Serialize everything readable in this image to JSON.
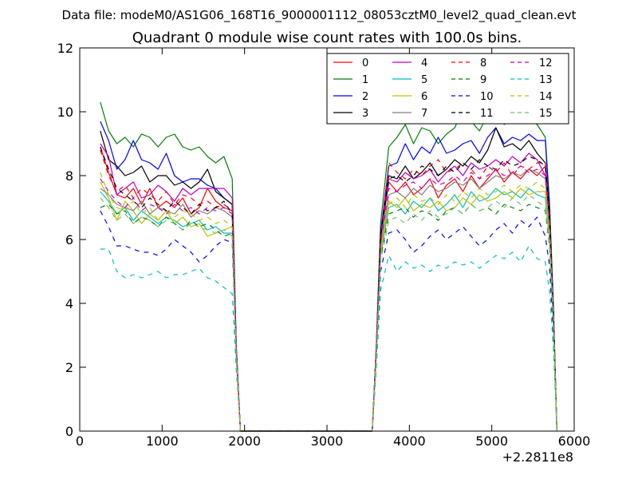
{
  "figure": {
    "suptitle": "Data file: modeM0/AS1G06_168T16_9000001112_08053cztM0_level2_quad_clean.evt"
  },
  "chart_data": {
    "type": "line",
    "title": "Quadrant 0 module wise count rates with 100.0s bins.",
    "xlabel": "",
    "ylabel": "",
    "xlim": [
      0,
      6000
    ],
    "ylim": [
      0,
      12
    ],
    "x_offset_label": "+2.2811e8",
    "x_ticks": [
      0,
      1000,
      2000,
      3000,
      4000,
      5000,
      6000
    ],
    "y_ticks": [
      0,
      2,
      4,
      6,
      8,
      10,
      12
    ],
    "grid": false,
    "legend_position": "top-right",
    "x": [
      250,
      350,
      450,
      550,
      650,
      750,
      850,
      950,
      1050,
      1150,
      1250,
      1350,
      1450,
      1550,
      1650,
      1750,
      1850,
      1900,
      1950,
      2050,
      2150,
      2250,
      2350,
      2450,
      2550,
      2650,
      2750,
      2850,
      2950,
      3050,
      3150,
      3250,
      3350,
      3450,
      3550,
      3600,
      3650,
      3750,
      3850,
      3950,
      4050,
      4150,
      4250,
      4350,
      4450,
      4550,
      4650,
      4750,
      4850,
      4950,
      5050,
      5150,
      5250,
      5350,
      5450,
      5550,
      5650,
      5700,
      5750,
      5790
    ],
    "series": [
      {
        "name": "0",
        "color": "#ff0000",
        "dash": "solid",
        "values": [
          8.9,
          8.1,
          7.4,
          7.3,
          7.6,
          7.1,
          7.6,
          7.0,
          7.2,
          7.0,
          7.3,
          6.8,
          7.0,
          7.6,
          7.2,
          7.0,
          6.9,
          2.5,
          0,
          0,
          0,
          0,
          0,
          0,
          0,
          0,
          0,
          0,
          0,
          0,
          0,
          0,
          0,
          0,
          0,
          2.6,
          6.0,
          7.8,
          7.5,
          7.8,
          7.4,
          7.6,
          7.9,
          7.3,
          7.7,
          7.9,
          7.5,
          8.0,
          7.6,
          7.9,
          8.2,
          7.8,
          8.1,
          7.9,
          8.2,
          8.0,
          8.3,
          6.5,
          3.5,
          0
        ]
      },
      {
        "name": "1",
        "color": "#008000",
        "dash": "solid",
        "values": [
          10.3,
          9.4,
          9.0,
          9.2,
          8.9,
          9.3,
          9.2,
          8.9,
          9.2,
          9.3,
          8.9,
          8.8,
          8.9,
          8.6,
          8.4,
          8.6,
          7.9,
          2.7,
          0,
          0,
          0,
          0,
          0,
          0,
          0,
          0,
          0,
          0,
          0,
          0,
          0,
          0,
          0,
          0,
          0,
          2.8,
          6.5,
          8.9,
          9.2,
          9.6,
          9.0,
          9.5,
          9.4,
          9.0,
          9.3,
          9.5,
          10.1,
          9.7,
          9.4,
          9.9,
          10.2,
          9.6,
          9.8,
          10.0,
          9.8,
          9.6,
          9.2,
          7.2,
          3.8,
          0
        ]
      },
      {
        "name": "2",
        "color": "#0000ff",
        "dash": "solid",
        "values": [
          9.7,
          9.1,
          8.2,
          8.5,
          9.1,
          8.5,
          8.4,
          8.2,
          8.7,
          8.0,
          7.8,
          7.9,
          7.9,
          7.7,
          7.6,
          7.3,
          7.1,
          2.6,
          0,
          0,
          0,
          0,
          0,
          0,
          0,
          0,
          0,
          0,
          0,
          0,
          0,
          0,
          0,
          0,
          0,
          2.7,
          6.2,
          8.3,
          8.4,
          9.0,
          8.5,
          8.9,
          8.7,
          9.2,
          8.7,
          8.8,
          9.0,
          9.1,
          8.7,
          9.2,
          9.5,
          9.0,
          9.2,
          9.1,
          9.3,
          9.1,
          9.1,
          7.0,
          3.6,
          0
        ]
      },
      {
        "name": "3",
        "color": "#000000",
        "dash": "solid",
        "values": [
          9.4,
          8.5,
          8.3,
          8.0,
          8.1,
          8.3,
          7.8,
          8.0,
          8.0,
          7.7,
          7.8,
          7.6,
          7.8,
          8.2,
          7.5,
          7.3,
          7.1,
          2.6,
          0,
          0,
          0,
          0,
          0,
          0,
          0,
          0,
          0,
          0,
          0,
          0,
          0,
          0,
          0,
          0,
          0,
          2.7,
          6.1,
          8.0,
          7.9,
          8.3,
          7.9,
          8.1,
          8.4,
          8.0,
          8.2,
          8.5,
          8.3,
          8.6,
          8.4,
          8.8,
          9.5,
          8.9,
          9.0,
          8.8,
          9.1,
          8.7,
          8.4,
          6.8,
          3.5,
          0
        ]
      },
      {
        "name": "4",
        "color": "#bf00bf",
        "dash": "solid",
        "values": [
          9.0,
          8.6,
          7.4,
          7.6,
          7.8,
          7.3,
          7.4,
          7.7,
          7.5,
          7.2,
          7.6,
          7.4,
          7.6,
          7.6,
          7.6,
          7.6,
          7.3,
          2.6,
          0,
          0,
          0,
          0,
          0,
          0,
          0,
          0,
          0,
          0,
          0,
          0,
          0,
          0,
          0,
          0,
          0,
          2.7,
          6.0,
          7.9,
          7.8,
          8.1,
          7.9,
          8.0,
          8.2,
          7.8,
          8.1,
          8.3,
          8.0,
          8.4,
          8.2,
          8.3,
          8.5,
          8.3,
          8.6,
          8.4,
          8.7,
          8.5,
          8.0,
          6.6,
          3.4,
          0
        ]
      },
      {
        "name": "5",
        "color": "#00bfbf",
        "dash": "solid",
        "values": [
          7.5,
          7.2,
          6.8,
          7.0,
          6.6,
          6.9,
          6.7,
          6.5,
          6.7,
          6.6,
          6.4,
          6.5,
          6.6,
          6.3,
          6.4,
          6.2,
          6.2,
          2.4,
          0,
          0,
          0,
          0,
          0,
          0,
          0,
          0,
          0,
          0,
          0,
          0,
          0,
          0,
          0,
          0,
          0,
          2.5,
          5.5,
          7.0,
          7.1,
          6.8,
          7.2,
          7.0,
          7.3,
          6.9,
          7.1,
          7.4,
          7.0,
          7.5,
          7.2,
          7.3,
          7.6,
          7.4,
          7.5,
          7.3,
          7.6,
          7.4,
          7.3,
          6.0,
          3.2,
          0
        ]
      },
      {
        "name": "6",
        "color": "#bfbf00",
        "dash": "solid",
        "values": [
          7.8,
          7.3,
          6.6,
          7.2,
          6.9,
          6.5,
          6.8,
          6.6,
          6.9,
          6.5,
          6.7,
          6.4,
          6.5,
          6.1,
          6.2,
          6.3,
          6.4,
          2.4,
          0,
          0,
          0,
          0,
          0,
          0,
          0,
          0,
          0,
          0,
          0,
          0,
          0,
          0,
          0,
          0,
          0,
          2.5,
          5.6,
          7.2,
          7.0,
          7.3,
          6.9,
          7.1,
          7.0,
          7.2,
          6.9,
          7.0,
          7.3,
          7.1,
          7.4,
          7.2,
          7.3,
          7.5,
          7.3,
          7.6,
          7.4,
          7.5,
          7.5,
          6.1,
          3.3,
          0
        ]
      },
      {
        "name": "7",
        "color": "#808080",
        "dash": "solid",
        "values": [
          7.6,
          7.4,
          7.1,
          7.0,
          6.9,
          7.2,
          6.8,
          7.0,
          6.9,
          6.8,
          7.1,
          6.7,
          6.9,
          6.8,
          7.0,
          6.9,
          6.7,
          2.5,
          0,
          0,
          0,
          0,
          0,
          0,
          0,
          0,
          0,
          0,
          0,
          0,
          0,
          0,
          0,
          0,
          0,
          2.6,
          5.8,
          7.4,
          7.5,
          7.3,
          7.6,
          7.4,
          7.7,
          7.5,
          7.6,
          7.8,
          7.7,
          7.9,
          7.6,
          7.8,
          8.0,
          7.9,
          8.1,
          8.0,
          8.2,
          8.1,
          7.9,
          6.4,
          3.4,
          0
        ]
      },
      {
        "name": "8",
        "color": "#ff0000",
        "dash": "dashed",
        "values": [
          8.8,
          8.0,
          7.5,
          7.7,
          7.3,
          7.6,
          7.4,
          7.2,
          7.5,
          7.1,
          7.4,
          7.3,
          7.1,
          7.2,
          7.0,
          7.1,
          6.9,
          2.5,
          0,
          0,
          0,
          0,
          0,
          0,
          0,
          0,
          0,
          0,
          0,
          0,
          0,
          0,
          0,
          0,
          0,
          2.6,
          6.0,
          8.4,
          8.1,
          7.9,
          8.2,
          8.0,
          8.3,
          8.5,
          8.1,
          8.2,
          8.4,
          8.2,
          7.9,
          8.3,
          8.1,
          8.4,
          8.0,
          8.3,
          8.2,
          8.4,
          8.4,
          6.6,
          3.5,
          0
        ]
      },
      {
        "name": "9",
        "color": "#008000",
        "dash": "dashed",
        "values": [
          7.0,
          7.1,
          6.8,
          6.9,
          6.5,
          6.7,
          6.6,
          6.4,
          6.7,
          6.5,
          6.3,
          6.6,
          6.4,
          6.5,
          6.3,
          6.1,
          6.2,
          2.4,
          0,
          0,
          0,
          0,
          0,
          0,
          0,
          0,
          0,
          0,
          0,
          0,
          0,
          0,
          0,
          0,
          0,
          2.5,
          5.4,
          6.8,
          6.9,
          7.0,
          6.7,
          6.9,
          6.8,
          6.6,
          6.9,
          7.0,
          6.8,
          7.1,
          6.9,
          7.0,
          6.8,
          7.1,
          7.0,
          6.9,
          7.1,
          7.0,
          6.9,
          5.8,
          3.1,
          0
        ]
      },
      {
        "name": "10",
        "color": "#0000ff",
        "dash": "dashed",
        "values": [
          6.9,
          6.4,
          5.8,
          5.8,
          5.7,
          5.6,
          5.6,
          5.5,
          5.7,
          6.0,
          5.8,
          5.6,
          5.3,
          5.5,
          5.8,
          6.0,
          5.9,
          2.2,
          0,
          0,
          0,
          0,
          0,
          0,
          0,
          0,
          0,
          0,
          0,
          0,
          0,
          0,
          0,
          0,
          0,
          2.3,
          5.0,
          6.2,
          6.3,
          6.0,
          5.6,
          5.8,
          6.1,
          6.3,
          6.0,
          6.2,
          6.4,
          6.1,
          5.8,
          6.0,
          6.3,
          6.5,
          6.2,
          6.6,
          6.4,
          6.7,
          6.1,
          5.2,
          2.8,
          0
        ]
      },
      {
        "name": "11",
        "color": "#000000",
        "dash": "dashed",
        "values": [
          8.9,
          8.2,
          7.6,
          7.4,
          7.2,
          7.0,
          7.3,
          7.1,
          6.9,
          7.2,
          7.0,
          6.8,
          7.1,
          6.9,
          7.0,
          7.2,
          6.8,
          2.5,
          0,
          0,
          0,
          0,
          0,
          0,
          0,
          0,
          0,
          0,
          0,
          0,
          0,
          0,
          0,
          0,
          0,
          2.6,
          6.1,
          7.9,
          8.0,
          7.8,
          8.0,
          8.3,
          8.2,
          8.0,
          8.3,
          8.1,
          8.4,
          8.2,
          8.5,
          8.3,
          8.2,
          8.5,
          8.3,
          8.4,
          8.6,
          8.5,
          8.3,
          6.6,
          3.5,
          0
        ]
      },
      {
        "name": "12",
        "color": "#bf00bf",
        "dash": "dashed",
        "values": [
          7.9,
          7.5,
          7.2,
          7.0,
          7.3,
          6.9,
          7.1,
          7.0,
          6.8,
          7.1,
          6.9,
          7.0,
          6.8,
          7.0,
          6.9,
          7.0,
          6.8,
          2.5,
          0,
          0,
          0,
          0,
          0,
          0,
          0,
          0,
          0,
          0,
          0,
          0,
          0,
          0,
          0,
          0,
          0,
          2.6,
          5.9,
          7.6,
          7.5,
          7.7,
          7.8,
          7.6,
          7.9,
          7.7,
          7.8,
          8.0,
          7.8,
          8.1,
          7.9,
          8.0,
          8.2,
          8.0,
          8.1,
          8.3,
          8.1,
          8.2,
          8.0,
          6.5,
          3.4,
          0
        ]
      },
      {
        "name": "13",
        "color": "#00bfbf",
        "dash": "dashed",
        "values": [
          5.7,
          5.7,
          5.0,
          4.8,
          4.9,
          4.8,
          4.9,
          5.0,
          4.8,
          4.9,
          4.9,
          5.0,
          5.1,
          4.8,
          4.7,
          4.5,
          4.3,
          1.9,
          0,
          0,
          0,
          0,
          0,
          0,
          0,
          0,
          0,
          0,
          0,
          0,
          0,
          0,
          0,
          0,
          0,
          2.0,
          4.4,
          5.5,
          5.0,
          5.3,
          5.1,
          5.2,
          5.0,
          5.2,
          5.1,
          5.3,
          5.2,
          5.3,
          5.1,
          5.3,
          5.5,
          5.4,
          5.6,
          5.3,
          5.8,
          5.4,
          5.3,
          4.4,
          2.5,
          0
        ]
      },
      {
        "name": "14",
        "color": "#bfbf00",
        "dash": "dashed",
        "values": [
          8.1,
          7.4,
          7.0,
          6.9,
          7.2,
          6.8,
          7.0,
          6.6,
          6.9,
          6.7,
          6.9,
          6.8,
          6.6,
          6.7,
          6.5,
          6.6,
          6.4,
          2.4,
          0,
          0,
          0,
          0,
          0,
          0,
          0,
          0,
          0,
          0,
          0,
          0,
          0,
          0,
          0,
          0,
          0,
          2.5,
          5.5,
          7.1,
          7.3,
          7.0,
          7.4,
          7.2,
          7.3,
          7.1,
          7.4,
          7.2,
          7.5,
          7.3,
          7.6,
          7.4,
          7.5,
          7.7,
          7.5,
          7.7,
          7.6,
          7.8,
          7.6,
          6.2,
          3.3,
          0
        ]
      },
      {
        "name": "15",
        "color": "#6fbf6f",
        "dash": "dashed",
        "values": [
          7.3,
          7.0,
          6.6,
          6.8,
          6.5,
          6.7,
          6.6,
          6.4,
          6.6,
          6.5,
          6.3,
          6.5,
          6.4,
          6.3,
          6.2,
          6.3,
          6.1,
          2.3,
          0,
          0,
          0,
          0,
          0,
          0,
          0,
          0,
          0,
          0,
          0,
          0,
          0,
          0,
          0,
          0,
          0,
          2.4,
          5.3,
          6.6,
          6.7,
          6.5,
          6.8,
          6.6,
          6.9,
          6.7,
          6.8,
          7.0,
          6.8,
          7.1,
          6.9,
          7.0,
          7.2,
          7.0,
          7.3,
          7.1,
          7.4,
          7.2,
          7.0,
          5.9,
          3.1,
          0
        ]
      }
    ]
  }
}
